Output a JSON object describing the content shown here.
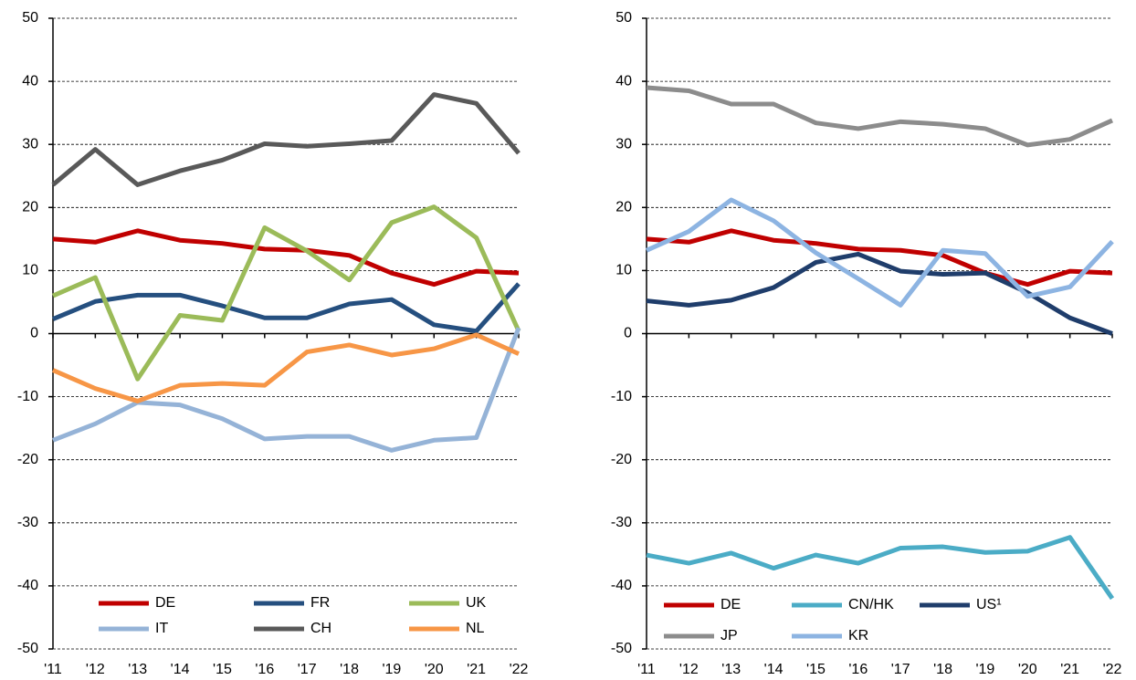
{
  "chart_data": [
    {
      "type": "line",
      "categories": [
        "'11",
        "'12",
        "'13",
        "'14",
        "'15",
        "'16",
        "'17",
        "'18",
        "'19",
        "'20",
        "'21",
        "'22"
      ],
      "ylim": [
        -50,
        50
      ],
      "yticks": [
        -50,
        -40,
        -30,
        -20,
        -10,
        0,
        10,
        20,
        30,
        40,
        50
      ],
      "grid": true,
      "legend": "bottom",
      "series": [
        {
          "name": "DE",
          "color": "#c00000",
          "values": [
            15,
            14.5,
            16.3,
            14.8,
            14.3,
            13.4,
            13.2,
            12.4,
            9.6,
            7.8,
            9.9,
            9.6
          ]
        },
        {
          "name": "FR",
          "color": "#254f7f",
          "values": [
            2.3,
            5.1,
            6.1,
            6.1,
            4.4,
            2.5,
            2.5,
            4.7,
            5.4,
            1.4,
            0.4,
            7.9
          ]
        },
        {
          "name": "UK",
          "color": "#9bbb59",
          "values": [
            6.0,
            8.9,
            -7.2,
            2.9,
            2.1,
            16.8,
            13.1,
            8.5,
            17.6,
            20.1,
            15.2,
            0.4
          ]
        },
        {
          "name": "IT",
          "color": "#95b3d7",
          "values": [
            -16.9,
            -14.3,
            -10.9,
            -11.3,
            -13.5,
            -16.7,
            -16.3,
            -16.3,
            -18.5,
            -16.9,
            -16.5,
            0.9
          ]
        },
        {
          "name": "CH",
          "color": "#595959",
          "values": [
            23.6,
            29.2,
            23.6,
            25.8,
            27.5,
            30.1,
            29.7,
            30.1,
            30.6,
            37.9,
            36.5,
            28.6
          ]
        },
        {
          "name": "NL",
          "color": "#f79646",
          "values": [
            -5.8,
            -8.7,
            -10.7,
            -8.2,
            -7.9,
            -8.2,
            -2.9,
            -1.8,
            -3.4,
            -2.4,
            -0.2,
            -3.2
          ]
        }
      ]
    },
    {
      "type": "line",
      "categories": [
        "'11",
        "'12",
        "'13",
        "'14",
        "'15",
        "'16",
        "'17",
        "'18",
        "'19",
        "'20",
        "'21",
        "'22"
      ],
      "ylim": [
        -50,
        50
      ],
      "yticks": [
        -50,
        -40,
        -30,
        -20,
        -10,
        0,
        10,
        20,
        30,
        40,
        50
      ],
      "grid": true,
      "legend": "bottom",
      "series": [
        {
          "name": "DE",
          "color": "#c00000",
          "values": [
            15,
            14.5,
            16.3,
            14.8,
            14.3,
            13.4,
            13.2,
            12.4,
            9.6,
            7.8,
            9.9,
            9.6
          ]
        },
        {
          "name": "CN/HK",
          "color": "#4bacc6",
          "values": [
            -35.1,
            -36.4,
            -34.8,
            -37.2,
            -35.1,
            -36.4,
            -34.0,
            -33.8,
            -34.7,
            -34.5,
            -32.3,
            -42.0
          ]
        },
        {
          "name": "US¹",
          "color": "#1f3d6b",
          "values": [
            5.2,
            4.5,
            5.3,
            7.3,
            11.3,
            12.6,
            9.9,
            9.4,
            9.6,
            6.5,
            2.5,
            0.0
          ]
        },
        {
          "name": "JP",
          "color": "#8c8c8c",
          "values": [
            39.0,
            38.5,
            36.4,
            36.4,
            33.4,
            32.5,
            33.6,
            33.2,
            32.5,
            29.9,
            30.8,
            33.8
          ]
        },
        {
          "name": "KR",
          "color": "#8db4e2",
          "values": [
            13.2,
            16.2,
            21.2,
            17.9,
            12.8,
            8.7,
            4.5,
            13.2,
            12.7,
            5.9,
            7.4,
            14.6
          ]
        }
      ]
    }
  ]
}
